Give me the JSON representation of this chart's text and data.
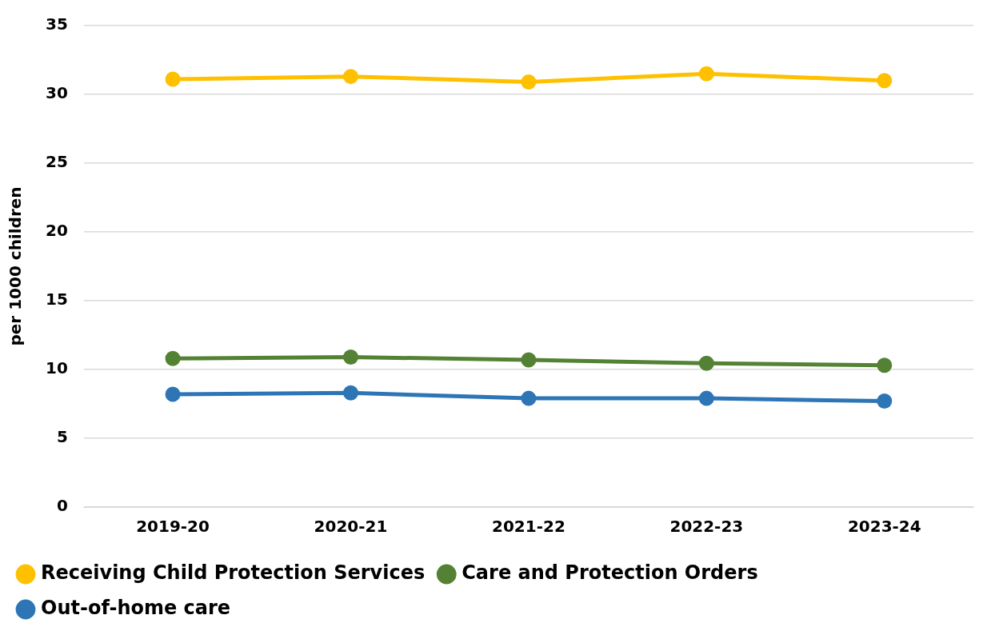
{
  "chart_data": {
    "type": "line",
    "ylabel": "per 1000 children",
    "categories": [
      "2019-20",
      "2020-21",
      "2021-22",
      "2022-23",
      "2023-24"
    ],
    "series": [
      {
        "name": "Receiving Child Protection Services",
        "color": "#ffc000",
        "values": [
          31.1,
          31.3,
          30.9,
          31.5,
          31.0
        ]
      },
      {
        "name": "Care and Protection Orders",
        "color": "#548235",
        "values": [
          10.8,
          10.9,
          10.7,
          10.45,
          10.3
        ]
      },
      {
        "name": "Out-of-home care",
        "color": "#2e75b6",
        "values": [
          8.2,
          8.3,
          7.9,
          7.9,
          7.7
        ]
      }
    ],
    "ylim": [
      0,
      35
    ],
    "yticks": [
      0,
      5,
      10,
      15,
      20,
      25,
      30,
      35
    ],
    "grid": "y",
    "legend": "bottom left",
    "marker": "circle",
    "line_style": "solid"
  }
}
